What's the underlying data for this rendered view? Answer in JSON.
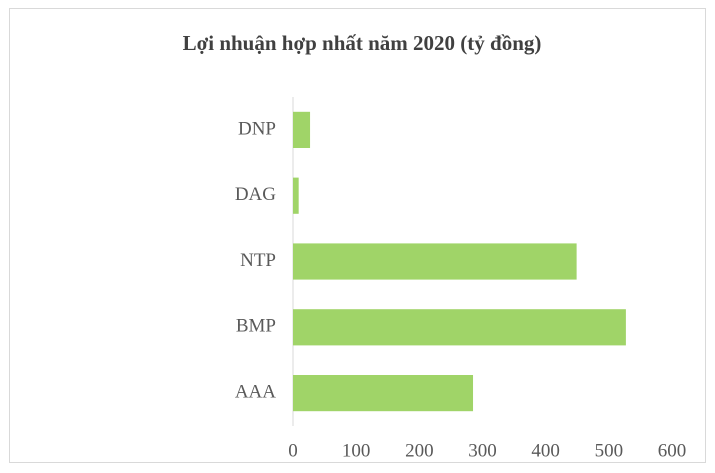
{
  "chart_data": {
    "type": "barh",
    "title": "Lợi nhuận hợp nhất năm 2020 (tỷ đồng)",
    "categories": [
      "DNP",
      "DAG",
      "NTP",
      "BMP",
      "AAA"
    ],
    "values": [
      27,
      9,
      449,
      527,
      285
    ],
    "color": "#a0d468",
    "xlim": [
      0,
      600
    ],
    "xticks": [
      0,
      100,
      200,
      300,
      400,
      500,
      600
    ],
    "grid": false
  }
}
